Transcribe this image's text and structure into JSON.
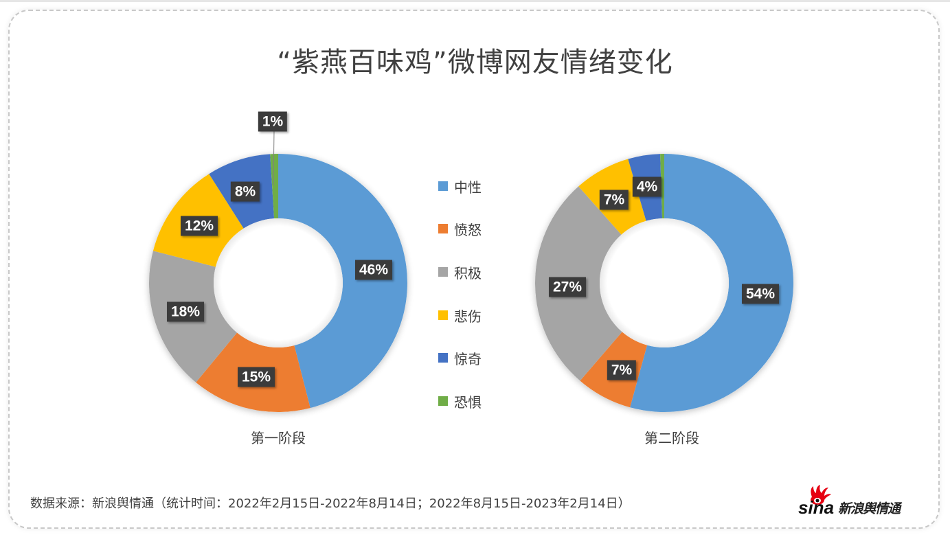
{
  "title": "“紫燕百味鸡”微博网友情绪变化",
  "legend": [
    {
      "label": "中性",
      "color": "#5B9BD5"
    },
    {
      "label": "愤怒",
      "color": "#ED7D31"
    },
    {
      "label": "积极",
      "color": "#A5A5A5"
    },
    {
      "label": "悲伤",
      "color": "#FFC000"
    },
    {
      "label": "惊奇",
      "color": "#4472C4"
    },
    {
      "label": "恐惧",
      "color": "#70AD47"
    }
  ],
  "stages": [
    {
      "label": "第一阶段"
    },
    {
      "label": "第二阶段"
    }
  ],
  "footer": {
    "source": "数据来源：新浪舆情通（统计时间：2022年2月15日-2022年8月14日；2022年8月15日-2023年2月14日）",
    "logo_text": "sina新浪舆情通",
    "logo_brand": "sina",
    "logo_cn": "新浪舆情通"
  },
  "chart_data": [
    {
      "type": "pie",
      "subtype": "donut",
      "title": "第一阶段",
      "categories": [
        "中性",
        "愤怒",
        "积极",
        "悲伤",
        "惊奇",
        "恐惧"
      ],
      "values": [
        46,
        15,
        18,
        12,
        8,
        1
      ],
      "labels": [
        "46%",
        "15%",
        "18%",
        "12%",
        "8%",
        "1%"
      ],
      "colors": [
        "#5B9BD5",
        "#ED7D31",
        "#A5A5A5",
        "#FFC000",
        "#4472C4",
        "#70AD47"
      ],
      "legend_position": "center-right"
    },
    {
      "type": "pie",
      "subtype": "donut",
      "title": "第二阶段",
      "categories": [
        "中性",
        "愤怒",
        "积极",
        "悲伤",
        "惊奇",
        "恐惧"
      ],
      "values": [
        54,
        7,
        27,
        7,
        4,
        0.5
      ],
      "labels": [
        "54%",
        "7%",
        "27%",
        "7%",
        "4%",
        ""
      ],
      "colors": [
        "#5B9BD5",
        "#ED7D31",
        "#A5A5A5",
        "#FFC000",
        "#4472C4",
        "#70AD47"
      ],
      "legend_position": "center-left"
    }
  ]
}
